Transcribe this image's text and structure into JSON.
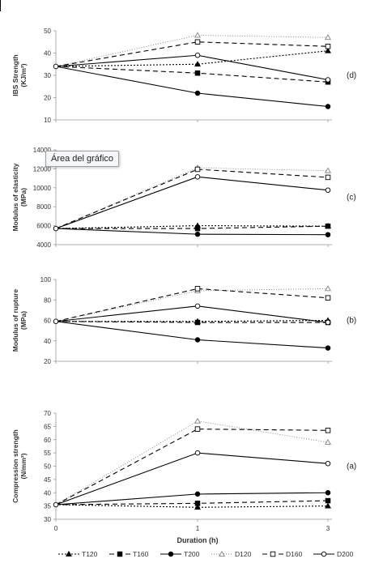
{
  "tooltip_text": "Área del gráfico",
  "series_styles": {
    "T120": {
      "color": "#000000",
      "dash": "2,2",
      "marker": "triangle",
      "fill": true
    },
    "T160": {
      "color": "#000000",
      "dash": "6,4",
      "marker": "square",
      "fill": true
    },
    "T200": {
      "color": "#000000",
      "dash": "",
      "marker": "circle",
      "fill": true
    },
    "D120": {
      "color": "#808080",
      "dash": "1,2",
      "marker": "triangle",
      "fill": false
    },
    "D160": {
      "color": "#000000",
      "dash": "6,4",
      "marker": "square",
      "fill": false
    },
    "D200": {
      "color": "#000000",
      "dash": "",
      "marker": "circle",
      "fill": false
    }
  },
  "xlabel": "Duration (h)",
  "chart_data": [
    {
      "type": "line",
      "panel_label": "(d)",
      "ylabel_lines": [
        "IBS Strength",
        "(KJ/m²)"
      ],
      "x": [
        0,
        1,
        3
      ],
      "ylim": [
        10,
        50
      ],
      "yticks": [
        "10",
        "20",
        "30",
        "40",
        "50"
      ],
      "xticks": [
        "0",
        "1",
        "3"
      ],
      "series": [
        {
          "name": "T120",
          "values": [
            34,
            35,
            41
          ]
        },
        {
          "name": "T160",
          "values": [
            34,
            31,
            27
          ]
        },
        {
          "name": "T200",
          "values": [
            34,
            22,
            16
          ]
        },
        {
          "name": "D120",
          "values": [
            34,
            48,
            47
          ]
        },
        {
          "name": "D160",
          "values": [
            34,
            45,
            43
          ]
        },
        {
          "name": "D200",
          "values": [
            34,
            39,
            28
          ]
        }
      ]
    },
    {
      "type": "line",
      "panel_label": "(c)",
      "ylabel_lines": [
        "Modulus of elasticity",
        "(MPa)"
      ],
      "x": [
        0,
        1,
        3
      ],
      "ylim": [
        4000,
        14000
      ],
      "yticks": [
        "4000",
        "6000",
        "8000",
        "10000",
        "12000",
        "14000"
      ],
      "xticks": [
        "0",
        "1",
        "3"
      ],
      "series": [
        {
          "name": "T120",
          "values": [
            5700,
            6000,
            5950
          ]
        },
        {
          "name": "T160",
          "values": [
            5700,
            5700,
            5950
          ]
        },
        {
          "name": "T200",
          "values": [
            5700,
            5100,
            5050
          ]
        },
        {
          "name": "D120",
          "values": [
            5700,
            12100,
            11800
          ]
        },
        {
          "name": "D160",
          "values": [
            5700,
            11950,
            11100
          ]
        },
        {
          "name": "D200",
          "values": [
            5700,
            11150,
            9750
          ]
        }
      ]
    },
    {
      "type": "line",
      "panel_label": "(b)",
      "ylabel_lines": [
        "Modulus of rupture",
        "(MPa)"
      ],
      "x": [
        0,
        1,
        3
      ],
      "ylim": [
        20,
        100
      ],
      "yticks": [
        "20",
        "40",
        "60",
        "80",
        "100"
      ],
      "xticks": [
        "0",
        "1",
        "3"
      ],
      "series": [
        {
          "name": "T120",
          "values": [
            59,
            59,
            60
          ]
        },
        {
          "name": "T160",
          "values": [
            59,
            58,
            58
          ]
        },
        {
          "name": "T200",
          "values": [
            59,
            41,
            33
          ]
        },
        {
          "name": "D120",
          "values": [
            59,
            89,
            91
          ]
        },
        {
          "name": "D160",
          "values": [
            59,
            91,
            82
          ]
        },
        {
          "name": "D200",
          "values": [
            59,
            74,
            58
          ]
        }
      ]
    },
    {
      "type": "line",
      "panel_label": "(a)",
      "ylabel_lines": [
        "Compression strength",
        "(N/mm²)"
      ],
      "x": [
        0,
        1,
        3
      ],
      "ylim": [
        30,
        70
      ],
      "yticks": [
        "30",
        "35",
        "40",
        "45",
        "50",
        "55",
        "60",
        "65",
        "70"
      ],
      "xticks": [
        "0",
        "1",
        "3"
      ],
      "series": [
        {
          "name": "T120",
          "values": [
            35.5,
            34.5,
            35
          ]
        },
        {
          "name": "T160",
          "values": [
            35.5,
            36,
            37
          ]
        },
        {
          "name": "T200",
          "values": [
            35.5,
            39.5,
            40
          ]
        },
        {
          "name": "D120",
          "values": [
            35.5,
            67,
            59
          ]
        },
        {
          "name": "D160",
          "values": [
            35.5,
            64,
            63.5
          ]
        },
        {
          "name": "D200",
          "values": [
            35.5,
            55,
            51
          ]
        }
      ]
    }
  ],
  "legend": [
    "T120",
    "T160",
    "T200",
    "D120",
    "D160",
    "D200"
  ]
}
